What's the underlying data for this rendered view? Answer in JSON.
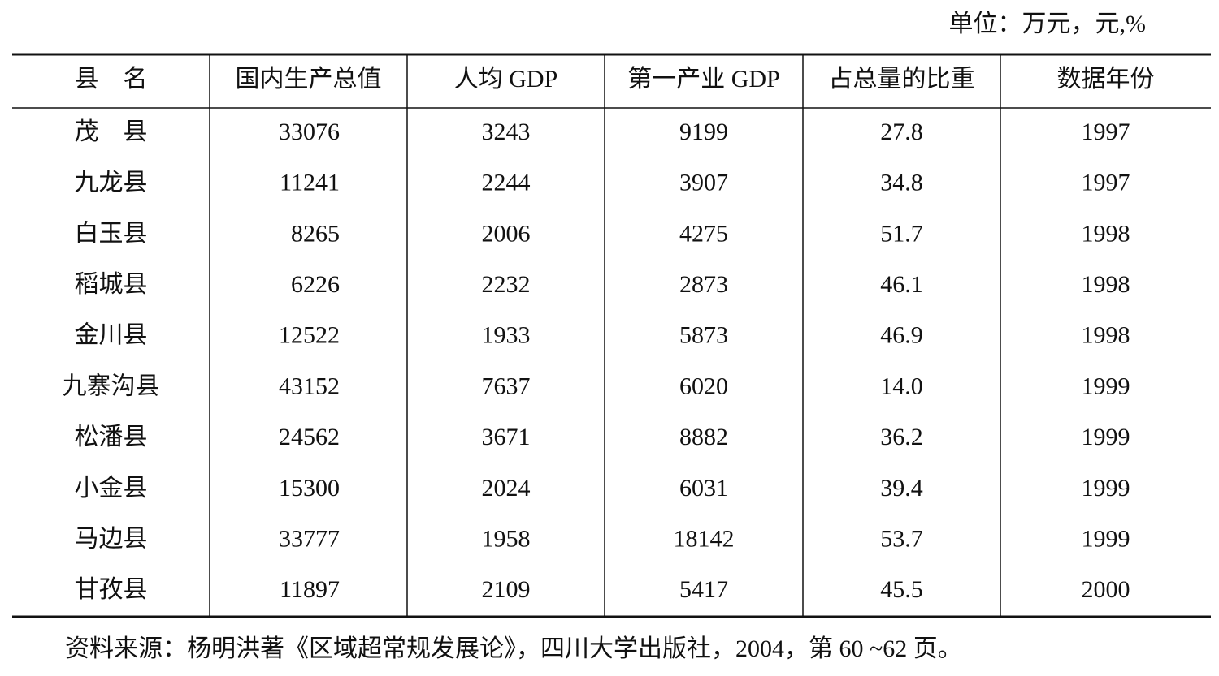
{
  "unit": "单位：万元，元,%",
  "table": {
    "header": [
      "县　名",
      "国内生产总值",
      "人均 GDP",
      "第一产业 GDP",
      "占总量的比重",
      "数据年份"
    ],
    "rows": [
      [
        "茂　县",
        "33076",
        "3243",
        "9199",
        "27.8",
        "1997"
      ],
      [
        "九龙县",
        "11241",
        "2244",
        "3907",
        "34.8",
        "1997"
      ],
      [
        "白玉县",
        "8265",
        "2006",
        "4275",
        "51.7",
        "1998"
      ],
      [
        "稻城县",
        "6226",
        "2232",
        "2873",
        "46.1",
        "1998"
      ],
      [
        "金川县",
        "12522",
        "1933",
        "5873",
        "46.9",
        "1998"
      ],
      [
        "九寨沟县",
        "43152",
        "7637",
        "6020",
        "14.0",
        "1999"
      ],
      [
        "松潘县",
        "24562",
        "3671",
        "8882",
        "36.2",
        "1999"
      ],
      [
        "小金县",
        "15300",
        "2024",
        "6031",
        "39.4",
        "1999"
      ],
      [
        "马边县",
        "33777",
        "1958",
        "18142",
        "53.7",
        "1999"
      ],
      [
        "甘孜县",
        "11897",
        "2109",
        "5417",
        "45.5",
        "2000"
      ]
    ]
  },
  "source": "资料来源：杨明洪著《区域超常规发展论》，四川大学出版社，2004，第 60 ~62 页。"
}
